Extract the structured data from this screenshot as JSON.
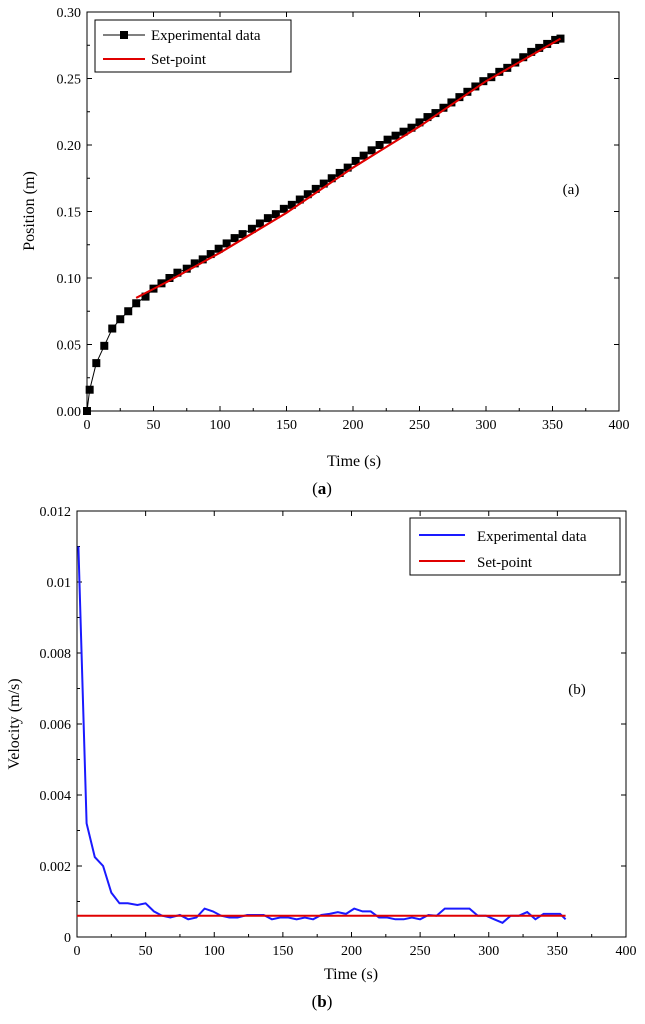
{
  "chart_data": [
    {
      "type": "line",
      "panel_label": "(a)",
      "caption": {
        "open": "(",
        "letter": "a",
        "close": ")"
      },
      "xlabel": "Time (s)",
      "ylabel": "Position (m)",
      "xlim": [
        0,
        400
      ],
      "ylim": [
        0,
        0.3
      ],
      "xticks": [
        "0",
        "50",
        "100",
        "150",
        "200",
        "250",
        "300",
        "350",
        "400"
      ],
      "yticks": [
        "0.00",
        "0.05",
        "0.10",
        "0.15",
        "0.20",
        "0.25",
        "0.30"
      ],
      "grid": false,
      "legend_position": "top-left",
      "series": [
        {
          "name": "Experimental data",
          "color": "#000000",
          "marker": "square",
          "x": [
            0,
            2,
            7,
            13,
            19,
            25,
            31,
            37,
            44,
            50,
            56,
            62,
            68,
            75,
            81,
            87,
            93,
            99,
            105,
            111,
            117,
            124,
            130,
            136,
            142,
            148,
            154,
            160,
            166,
            172,
            178,
            184,
            190,
            196,
            202,
            208,
            214,
            220,
            226,
            232,
            238,
            244,
            250,
            256,
            262,
            268,
            274,
            280,
            286,
            292,
            298,
            304,
            310,
            316,
            322,
            328,
            334,
            340,
            346,
            352,
            356
          ],
          "y": [
            0.0,
            0.016,
            0.036,
            0.049,
            0.062,
            0.069,
            0.075,
            0.081,
            0.086,
            0.092,
            0.096,
            0.1,
            0.104,
            0.107,
            0.111,
            0.114,
            0.118,
            0.122,
            0.126,
            0.13,
            0.133,
            0.137,
            0.141,
            0.145,
            0.148,
            0.152,
            0.155,
            0.159,
            0.163,
            0.167,
            0.171,
            0.175,
            0.179,
            0.183,
            0.188,
            0.192,
            0.196,
            0.2,
            0.204,
            0.207,
            0.21,
            0.213,
            0.217,
            0.221,
            0.224,
            0.228,
            0.232,
            0.236,
            0.24,
            0.244,
            0.248,
            0.251,
            0.255,
            0.258,
            0.262,
            0.266,
            0.27,
            0.273,
            0.276,
            0.279,
            0.28
          ]
        },
        {
          "name": "Set-point",
          "color": "#e00000",
          "x": [
            37,
            60,
            100,
            150,
            200,
            250,
            300,
            356
          ],
          "y": [
            0.085,
            0.097,
            0.119,
            0.149,
            0.183,
            0.214,
            0.248,
            0.28
          ]
        }
      ]
    },
    {
      "type": "line",
      "panel_label": "(b)",
      "caption": {
        "open": "(",
        "letter": "b",
        "close": ")"
      },
      "xlabel": "Time (s)",
      "ylabel": "Velocity (m/s)",
      "xlim": [
        0,
        400
      ],
      "ylim": [
        0,
        0.012
      ],
      "xticks": [
        "0",
        "50",
        "100",
        "150",
        "200",
        "250",
        "300",
        "350",
        "400"
      ],
      "yticks": [
        "0",
        "0.002",
        "0.004",
        "0.006",
        "0.008",
        "0.01",
        "0.012"
      ],
      "grid": false,
      "legend_position": "top-right",
      "series": [
        {
          "name": "Experimental data",
          "color": "#1a1aff",
          "x": [
            1,
            7,
            13,
            19,
            25,
            31,
            37,
            44,
            50,
            56,
            62,
            68,
            75,
            81,
            87,
            93,
            99,
            105,
            111,
            117,
            124,
            130,
            136,
            142,
            148,
            154,
            160,
            166,
            172,
            178,
            184,
            190,
            196,
            202,
            208,
            214,
            220,
            226,
            232,
            238,
            244,
            250,
            256,
            262,
            268,
            274,
            280,
            286,
            292,
            298,
            304,
            310,
            316,
            322,
            328,
            334,
            340,
            346,
            352,
            356
          ],
          "y": [
            0.011,
            0.0032,
            0.00225,
            0.002,
            0.00125,
            0.00095,
            0.00095,
            0.0009,
            0.00095,
            0.00072,
            0.0006,
            0.00055,
            0.00062,
            0.0005,
            0.00055,
            0.0008,
            0.00072,
            0.0006,
            0.00055,
            0.00055,
            0.00062,
            0.00062,
            0.00062,
            0.0005,
            0.00055,
            0.00055,
            0.0005,
            0.00055,
            0.0005,
            0.00062,
            0.00065,
            0.0007,
            0.00065,
            0.0008,
            0.00072,
            0.00072,
            0.00055,
            0.00055,
            0.0005,
            0.0005,
            0.00055,
            0.0005,
            0.00062,
            0.0006,
            0.0008,
            0.0008,
            0.0008,
            0.0008,
            0.0006,
            0.0006,
            0.0005,
            0.0004,
            0.0006,
            0.0006,
            0.0007,
            0.0005,
            0.00065,
            0.00065,
            0.00065,
            0.0005
          ]
        },
        {
          "name": "Set-point",
          "color": "#e00000",
          "x": [
            0,
            356
          ],
          "y": [
            0.0006,
            0.0006
          ]
        }
      ]
    }
  ]
}
